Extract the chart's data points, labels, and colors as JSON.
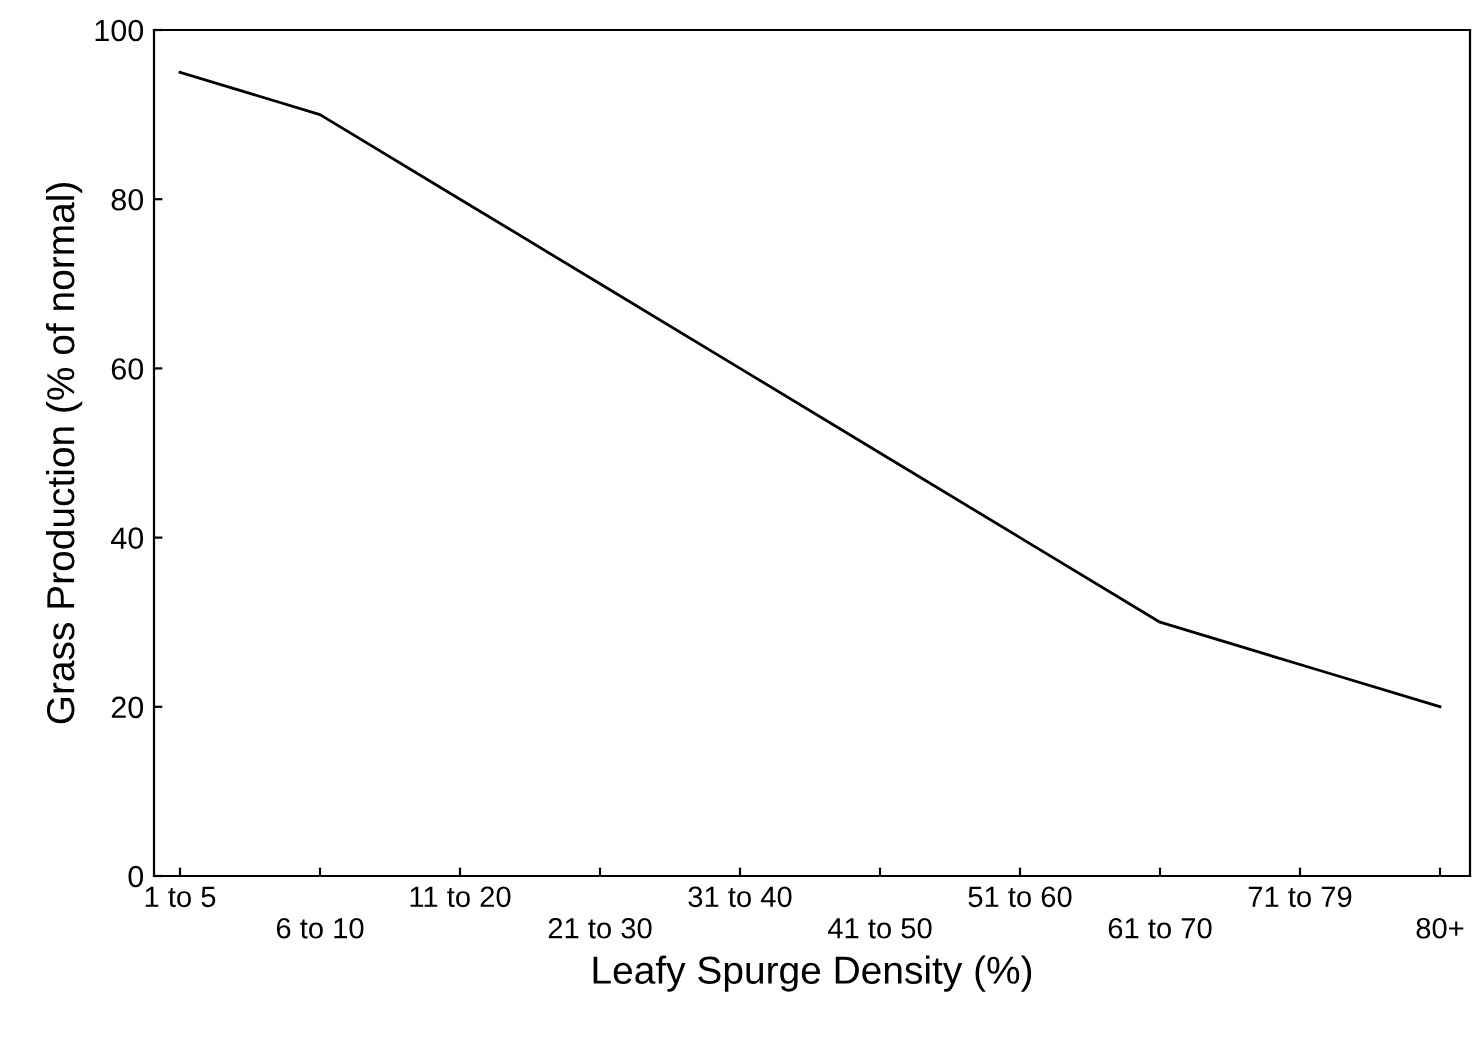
{
  "chart_data": {
    "type": "line",
    "xlabel": "Leafy Spurge Density (%)",
    "ylabel": "Grass Production (% of normal)",
    "categories": [
      "1 to 5",
      "6 to 10",
      "11 to 20",
      "21 to 30",
      "31 to 40",
      "41 to 50",
      "51 to 60",
      "61 to 70",
      "71 to 79",
      "80+"
    ],
    "series": [
      {
        "color": "#000000",
        "values": [
          95,
          90,
          80,
          70,
          60,
          50,
          40,
          30,
          25,
          20
        ]
      }
    ],
    "ylim": [
      0,
      100
    ],
    "yticks": [
      0,
      20,
      40,
      60,
      80,
      100
    ],
    "grid": false,
    "marker": "none",
    "line_style": "solid"
  }
}
